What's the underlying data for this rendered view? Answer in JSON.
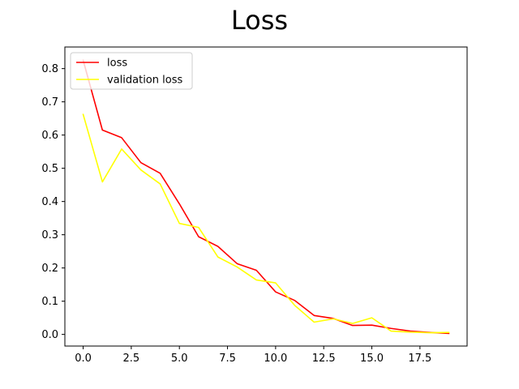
{
  "chart_data": {
    "type": "line",
    "title": "Loss",
    "xlabel": "",
    "ylabel": "",
    "xlim": [
      -0.95,
      19.95
    ],
    "ylim": [
      -0.035,
      0.865
    ],
    "x_ticks": [
      0.0,
      2.5,
      5.0,
      7.5,
      10.0,
      12.5,
      15.0,
      17.5
    ],
    "x_tick_labels": [
      "0.0",
      "2.5",
      "5.0",
      "7.5",
      "10.0",
      "12.5",
      "15.0",
      "17.5"
    ],
    "y_ticks": [
      0.0,
      0.1,
      0.2,
      0.3,
      0.4,
      0.5,
      0.6,
      0.7,
      0.8
    ],
    "y_tick_labels": [
      "0.0",
      "0.1",
      "0.2",
      "0.3",
      "0.4",
      "0.5",
      "0.6",
      "0.7",
      "0.8"
    ],
    "grid": false,
    "legend_position": "top-left",
    "x": [
      0,
      1,
      2,
      3,
      4,
      5,
      6,
      7,
      8,
      9,
      10,
      11,
      12,
      13,
      14,
      15,
      16,
      17,
      18,
      19
    ],
    "series": [
      {
        "name": "loss",
        "color": "#ff0000",
        "values": [
          0.825,
          0.615,
          0.592,
          0.517,
          0.485,
          0.393,
          0.294,
          0.265,
          0.213,
          0.193,
          0.128,
          0.102,
          0.057,
          0.048,
          0.027,
          0.028,
          0.018,
          0.01,
          0.006,
          0.003
        ]
      },
      {
        "name": "validation loss",
        "color": "#ffff00",
        "values": [
          0.662,
          0.459,
          0.558,
          0.495,
          0.453,
          0.334,
          0.322,
          0.233,
          0.203,
          0.164,
          0.155,
          0.087,
          0.037,
          0.047,
          0.033,
          0.05,
          0.01,
          0.007,
          0.005,
          0.006
        ]
      }
    ]
  }
}
